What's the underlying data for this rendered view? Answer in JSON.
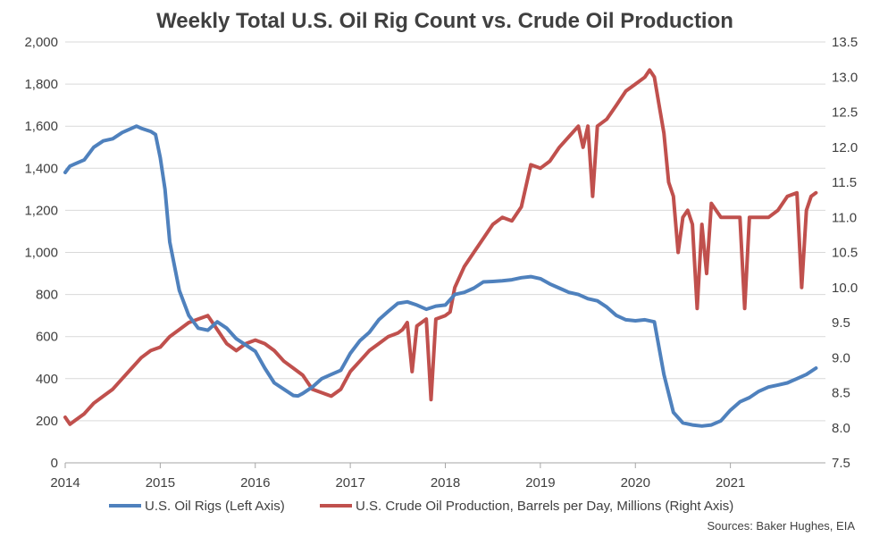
{
  "chart_data": {
    "type": "line",
    "title": "Weekly Total U.S. Oil Rig Count vs. Crude Oil Production",
    "source": "Sources: Baker Hughes, EIA",
    "x_tick_labels": [
      "2014",
      "2015",
      "2016",
      "2017",
      "2018",
      "2019",
      "2020",
      "2021"
    ],
    "xlim": [
      2014.0,
      2022.0
    ],
    "y_left": {
      "ylim": [
        0,
        2000
      ],
      "tick_values": [
        0,
        200,
        400,
        600,
        800,
        1000,
        1200,
        1400,
        1600,
        1800,
        2000
      ],
      "tick_labels": [
        "0",
        "200",
        "400",
        "600",
        "800",
        "1,000",
        "1,200",
        "1,400",
        "1,600",
        "1,800",
        "2,000"
      ]
    },
    "y_right": {
      "ylim": [
        7.5,
        13.5
      ],
      "tick_values": [
        7.5,
        8.0,
        8.5,
        9.0,
        9.5,
        10.0,
        10.5,
        11.0,
        11.5,
        12.0,
        12.5,
        13.0,
        13.5
      ],
      "tick_labels": [
        "7.5",
        "8.0",
        "8.5",
        "9.0",
        "9.5",
        "10.0",
        "10.5",
        "11.0",
        "11.5",
        "12.0",
        "12.5",
        "13.0",
        "13.5"
      ]
    },
    "grid": "horizontal",
    "legend": "bottom",
    "series": [
      {
        "name": "U.S. Oil Rigs (Left Axis)",
        "axis": "left",
        "color": "#4F81BD",
        "points": [
          [
            2014.0,
            1380
          ],
          [
            2014.05,
            1410
          ],
          [
            2014.1,
            1420
          ],
          [
            2014.2,
            1440
          ],
          [
            2014.3,
            1500
          ],
          [
            2014.4,
            1530
          ],
          [
            2014.5,
            1540
          ],
          [
            2014.6,
            1570
          ],
          [
            2014.7,
            1590
          ],
          [
            2014.75,
            1600
          ],
          [
            2014.8,
            1590
          ],
          [
            2014.9,
            1575
          ],
          [
            2014.95,
            1560
          ],
          [
            2015.0,
            1450
          ],
          [
            2015.05,
            1300
          ],
          [
            2015.1,
            1050
          ],
          [
            2015.2,
            820
          ],
          [
            2015.3,
            700
          ],
          [
            2015.4,
            640
          ],
          [
            2015.5,
            630
          ],
          [
            2015.6,
            670
          ],
          [
            2015.7,
            640
          ],
          [
            2015.8,
            590
          ],
          [
            2015.9,
            560
          ],
          [
            2016.0,
            530
          ],
          [
            2016.1,
            450
          ],
          [
            2016.2,
            380
          ],
          [
            2016.3,
            350
          ],
          [
            2016.4,
            320
          ],
          [
            2016.45,
            318
          ],
          [
            2016.5,
            330
          ],
          [
            2016.6,
            360
          ],
          [
            2016.7,
            400
          ],
          [
            2016.8,
            420
          ],
          [
            2016.9,
            440
          ],
          [
            2017.0,
            520
          ],
          [
            2017.1,
            580
          ],
          [
            2017.2,
            620
          ],
          [
            2017.3,
            680
          ],
          [
            2017.4,
            720
          ],
          [
            2017.5,
            758
          ],
          [
            2017.6,
            765
          ],
          [
            2017.7,
            750
          ],
          [
            2017.8,
            730
          ],
          [
            2017.9,
            745
          ],
          [
            2018.0,
            750
          ],
          [
            2018.1,
            800
          ],
          [
            2018.2,
            810
          ],
          [
            2018.3,
            830
          ],
          [
            2018.4,
            860
          ],
          [
            2018.5,
            862
          ],
          [
            2018.6,
            865
          ],
          [
            2018.7,
            870
          ],
          [
            2018.8,
            880
          ],
          [
            2018.9,
            885
          ],
          [
            2019.0,
            875
          ],
          [
            2019.1,
            850
          ],
          [
            2019.2,
            830
          ],
          [
            2019.3,
            810
          ],
          [
            2019.4,
            800
          ],
          [
            2019.5,
            780
          ],
          [
            2019.6,
            770
          ],
          [
            2019.7,
            740
          ],
          [
            2019.8,
            700
          ],
          [
            2019.9,
            680
          ],
          [
            2020.0,
            675
          ],
          [
            2020.1,
            680
          ],
          [
            2020.2,
            670
          ],
          [
            2020.3,
            420
          ],
          [
            2020.4,
            240
          ],
          [
            2020.5,
            190
          ],
          [
            2020.6,
            180
          ],
          [
            2020.7,
            175
          ],
          [
            2020.8,
            180
          ],
          [
            2020.9,
            200
          ],
          [
            2021.0,
            250
          ],
          [
            2021.1,
            290
          ],
          [
            2021.2,
            310
          ],
          [
            2021.3,
            340
          ],
          [
            2021.4,
            360
          ],
          [
            2021.5,
            370
          ],
          [
            2021.6,
            380
          ],
          [
            2021.7,
            400
          ],
          [
            2021.8,
            420
          ],
          [
            2021.9,
            450
          ]
        ]
      },
      {
        "name": "U.S. Crude Oil Production, Barrels per Day, Millions (Right Axis)",
        "axis": "right",
        "color": "#C0504D",
        "points": [
          [
            2014.0,
            8.15
          ],
          [
            2014.05,
            8.05
          ],
          [
            2014.1,
            8.1
          ],
          [
            2014.2,
            8.2
          ],
          [
            2014.3,
            8.35
          ],
          [
            2014.4,
            8.45
          ],
          [
            2014.5,
            8.55
          ],
          [
            2014.6,
            8.7
          ],
          [
            2014.7,
            8.85
          ],
          [
            2014.8,
            9.0
          ],
          [
            2014.9,
            9.1
          ],
          [
            2015.0,
            9.15
          ],
          [
            2015.1,
            9.3
          ],
          [
            2015.2,
            9.4
          ],
          [
            2015.3,
            9.5
          ],
          [
            2015.4,
            9.55
          ],
          [
            2015.5,
            9.6
          ],
          [
            2015.6,
            9.4
          ],
          [
            2015.7,
            9.2
          ],
          [
            2015.8,
            9.1
          ],
          [
            2015.9,
            9.2
          ],
          [
            2016.0,
            9.25
          ],
          [
            2016.1,
            9.2
          ],
          [
            2016.2,
            9.1
          ],
          [
            2016.3,
            8.95
          ],
          [
            2016.4,
            8.85
          ],
          [
            2016.5,
            8.75
          ],
          [
            2016.6,
            8.55
          ],
          [
            2016.7,
            8.5
          ],
          [
            2016.8,
            8.45
          ],
          [
            2016.9,
            8.55
          ],
          [
            2017.0,
            8.8
          ],
          [
            2017.1,
            8.95
          ],
          [
            2017.2,
            9.1
          ],
          [
            2017.3,
            9.2
          ],
          [
            2017.4,
            9.3
          ],
          [
            2017.5,
            9.35
          ],
          [
            2017.55,
            9.4
          ],
          [
            2017.6,
            9.5
          ],
          [
            2017.65,
            8.8
          ],
          [
            2017.7,
            9.45
          ],
          [
            2017.75,
            9.5
          ],
          [
            2017.8,
            9.55
          ],
          [
            2017.85,
            8.4
          ],
          [
            2017.9,
            9.55
          ],
          [
            2018.0,
            9.6
          ],
          [
            2018.05,
            9.65
          ],
          [
            2018.1,
            10.0
          ],
          [
            2018.2,
            10.3
          ],
          [
            2018.3,
            10.5
          ],
          [
            2018.4,
            10.7
          ],
          [
            2018.5,
            10.9
          ],
          [
            2018.6,
            11.0
          ],
          [
            2018.7,
            10.95
          ],
          [
            2018.8,
            11.15
          ],
          [
            2018.9,
            11.75
          ],
          [
            2019.0,
            11.7
          ],
          [
            2019.1,
            11.8
          ],
          [
            2019.2,
            12.0
          ],
          [
            2019.3,
            12.15
          ],
          [
            2019.4,
            12.3
          ],
          [
            2019.45,
            12.0
          ],
          [
            2019.5,
            12.3
          ],
          [
            2019.55,
            11.3
          ],
          [
            2019.6,
            12.3
          ],
          [
            2019.7,
            12.4
          ],
          [
            2019.8,
            12.6
          ],
          [
            2019.9,
            12.8
          ],
          [
            2020.0,
            12.9
          ],
          [
            2020.1,
            13.0
          ],
          [
            2020.15,
            13.1
          ],
          [
            2020.2,
            13.0
          ],
          [
            2020.25,
            12.6
          ],
          [
            2020.3,
            12.2
          ],
          [
            2020.35,
            11.5
          ],
          [
            2020.4,
            11.3
          ],
          [
            2020.45,
            10.5
          ],
          [
            2020.5,
            11.0
          ],
          [
            2020.55,
            11.1
          ],
          [
            2020.6,
            10.9
          ],
          [
            2020.65,
            9.7
          ],
          [
            2020.7,
            10.9
          ],
          [
            2020.75,
            10.2
          ],
          [
            2020.8,
            11.2
          ],
          [
            2020.9,
            11.0
          ],
          [
            2020.95,
            11.0
          ],
          [
            2021.0,
            11.0
          ],
          [
            2021.1,
            11.0
          ],
          [
            2021.15,
            9.7
          ],
          [
            2021.2,
            11.0
          ],
          [
            2021.3,
            11.0
          ],
          [
            2021.4,
            11.0
          ],
          [
            2021.5,
            11.1
          ],
          [
            2021.6,
            11.3
          ],
          [
            2021.7,
            11.35
          ],
          [
            2021.75,
            10.0
          ],
          [
            2021.8,
            11.1
          ],
          [
            2021.85,
            11.3
          ],
          [
            2021.9,
            11.35
          ]
        ]
      }
    ]
  }
}
